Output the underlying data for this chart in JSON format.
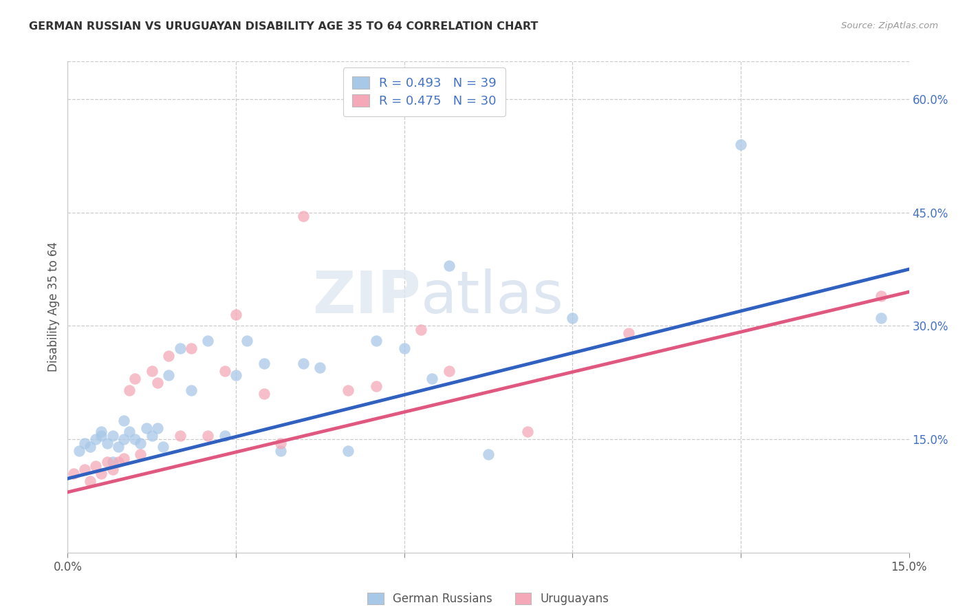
{
  "title": "GERMAN RUSSIAN VS URUGUAYAN DISABILITY AGE 35 TO 64 CORRELATION CHART",
  "source": "Source: ZipAtlas.com",
  "ylabel": "Disability Age 35 to 64",
  "xlim": [
    0.0,
    0.15
  ],
  "ylim": [
    0.0,
    0.65
  ],
  "xticks": [
    0.0,
    0.03,
    0.06,
    0.09,
    0.12,
    0.15
  ],
  "yticks_right": [
    0.15,
    0.3,
    0.45,
    0.6
  ],
  "ytick_right_labels": [
    "15.0%",
    "30.0%",
    "45.0%",
    "60.0%"
  ],
  "blue_R": 0.493,
  "blue_N": 39,
  "pink_R": 0.475,
  "pink_N": 30,
  "blue_color": "#a8c8e8",
  "pink_color": "#f4a8b8",
  "blue_line_color": "#3060c0",
  "pink_line_color": "#e05880",
  "background_color": "#ffffff",
  "watermark_zip": "ZIP",
  "watermark_atlas": "atlas",
  "german_russian_x": [
    0.002,
    0.003,
    0.004,
    0.005,
    0.006,
    0.006,
    0.007,
    0.008,
    0.008,
    0.009,
    0.01,
    0.01,
    0.011,
    0.012,
    0.013,
    0.014,
    0.015,
    0.016,
    0.017,
    0.018,
    0.02,
    0.022,
    0.025,
    0.028,
    0.03,
    0.032,
    0.035,
    0.038,
    0.042,
    0.045,
    0.05,
    0.055,
    0.06,
    0.065,
    0.068,
    0.075,
    0.09,
    0.12,
    0.145
  ],
  "german_russian_y": [
    0.135,
    0.145,
    0.14,
    0.15,
    0.155,
    0.16,
    0.145,
    0.155,
    0.12,
    0.14,
    0.15,
    0.175,
    0.16,
    0.15,
    0.145,
    0.165,
    0.155,
    0.165,
    0.14,
    0.235,
    0.27,
    0.215,
    0.28,
    0.155,
    0.235,
    0.28,
    0.25,
    0.135,
    0.25,
    0.245,
    0.135,
    0.28,
    0.27,
    0.23,
    0.38,
    0.13,
    0.31,
    0.54,
    0.31
  ],
  "uruguayan_x": [
    0.001,
    0.003,
    0.004,
    0.005,
    0.006,
    0.007,
    0.008,
    0.009,
    0.01,
    0.011,
    0.012,
    0.013,
    0.015,
    0.016,
    0.018,
    0.02,
    0.022,
    0.025,
    0.028,
    0.03,
    0.035,
    0.038,
    0.042,
    0.05,
    0.055,
    0.063,
    0.068,
    0.082,
    0.1,
    0.145
  ],
  "uruguayan_y": [
    0.105,
    0.11,
    0.095,
    0.115,
    0.105,
    0.12,
    0.11,
    0.12,
    0.125,
    0.215,
    0.23,
    0.13,
    0.24,
    0.225,
    0.26,
    0.155,
    0.27,
    0.155,
    0.24,
    0.315,
    0.21,
    0.145,
    0.445,
    0.215,
    0.22,
    0.295,
    0.24,
    0.16,
    0.29,
    0.34
  ],
  "blue_line_x0": 0.0,
  "blue_line_y0": 0.098,
  "blue_line_x1": 0.15,
  "blue_line_y1": 0.375,
  "pink_line_x0": 0.0,
  "pink_line_y0": 0.08,
  "pink_line_x1": 0.15,
  "pink_line_y1": 0.345,
  "legend_entries": [
    "German Russians",
    "Uruguayans"
  ]
}
